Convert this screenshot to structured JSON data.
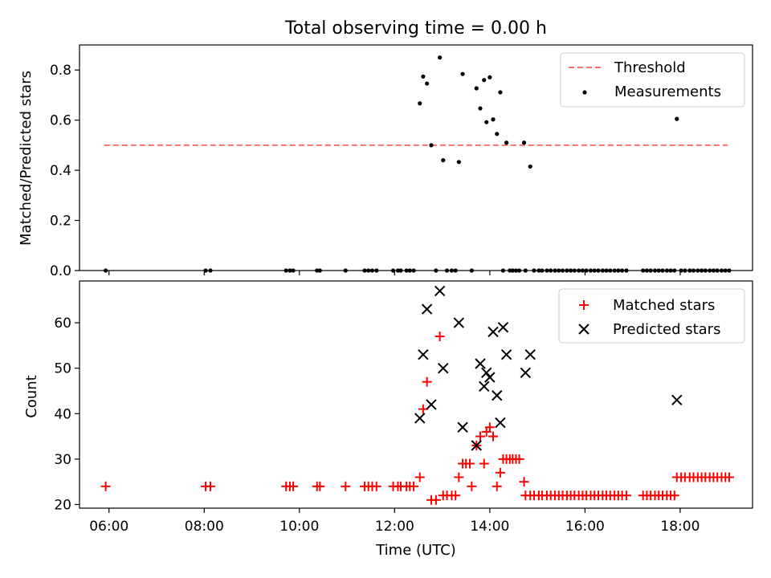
{
  "chart_data": [
    {
      "type": "scatter",
      "title": "Total observing time = 0.00 h",
      "xlabel": "",
      "ylabel": "Matched/Predicted stars",
      "xlim": [
        5.38,
        19.52
      ],
      "ylim": [
        0,
        0.9
      ],
      "yticks": [
        0.0,
        0.2,
        0.4,
        0.6,
        0.8
      ],
      "ytick_labels": [
        "0.0",
        "0.2",
        "0.4",
        "0.6",
        "0.8"
      ],
      "legend": {
        "position": "top-right",
        "entries": [
          "Threshold",
          "Measurements"
        ]
      },
      "threshold": {
        "name": "Threshold",
        "y": 0.5,
        "x_range": [
          5.9,
          19.0
        ],
        "color": "#ff6f6f"
      },
      "series": [
        {
          "name": "Measurements",
          "color": "#000000",
          "x": [
            5.93,
            8.03,
            8.13,
            9.72,
            9.8,
            9.87,
            10.37,
            10.43,
            10.97,
            11.37,
            11.45,
            11.53,
            11.62,
            11.97,
            12.07,
            12.13,
            12.25,
            12.32,
            12.4,
            12.53,
            12.6,
            12.68,
            12.77,
            12.87,
            12.95,
            13.02,
            13.1,
            13.2,
            13.28,
            13.35,
            13.43,
            13.62,
            13.72,
            13.8,
            13.88,
            13.93,
            14.0,
            14.07,
            14.15,
            14.22,
            14.28,
            14.35,
            14.42,
            14.48,
            14.55,
            14.62,
            14.72,
            14.75,
            14.85,
            14.93,
            15.03,
            15.1,
            15.2,
            15.28,
            15.37,
            15.45,
            15.53,
            15.62,
            15.7,
            15.78,
            15.87,
            15.95,
            16.03,
            16.12,
            16.2,
            16.28,
            16.37,
            16.45,
            16.53,
            16.62,
            16.7,
            16.78,
            16.87,
            17.22,
            17.3,
            17.38,
            17.47,
            17.55,
            17.63,
            17.72,
            17.8,
            17.88,
            17.93,
            18.02,
            18.1,
            18.2,
            18.28,
            18.37,
            18.45,
            18.53,
            18.62,
            18.7,
            18.78,
            18.87,
            18.95,
            19.03
          ],
          "y": [
            0,
            0,
            0,
            0,
            0,
            0,
            0,
            0,
            0,
            0,
            0,
            0,
            0,
            0,
            0,
            0,
            0,
            0,
            0,
            0.667,
            0.774,
            0.746,
            0.5,
            0,
            0.85,
            0.44,
            0,
            0,
            0,
            0.433,
            0.784,
            0,
            0.727,
            0.647,
            0.76,
            0.592,
            0.771,
            0.603,
            0.545,
            0.711,
            0,
            0.51,
            0,
            0,
            0,
            0,
            0.51,
            0,
            0.415,
            0,
            0,
            0,
            0,
            0,
            0,
            0,
            0,
            0,
            0,
            0,
            0,
            0,
            0,
            0,
            0,
            0,
            0,
            0,
            0,
            0,
            0,
            0,
            0,
            0,
            0,
            0,
            0,
            0,
            0,
            0,
            0,
            0,
            0.605,
            0,
            0,
            0,
            0,
            0,
            0,
            0,
            0,
            0,
            0,
            0,
            0,
            0
          ]
        }
      ]
    },
    {
      "type": "scatter",
      "title": "",
      "xlabel": "Time (UTC)",
      "ylabel": "Count",
      "xlim": [
        5.38,
        19.52
      ],
      "ylim": [
        19.2,
        69.2
      ],
      "yticks": [
        20,
        30,
        40,
        50,
        60
      ],
      "ytick_labels": [
        "20",
        "30",
        "40",
        "50",
        "60"
      ],
      "xticks": [
        6,
        8,
        10,
        12,
        14,
        16,
        18
      ],
      "xtick_labels": [
        "06:00",
        "08:00",
        "10:00",
        "12:00",
        "14:00",
        "16:00",
        "18:00"
      ],
      "legend": {
        "position": "top-right",
        "entries": [
          "Matched stars",
          "Predicted stars"
        ]
      },
      "series": [
        {
          "name": "Matched stars",
          "color": "#ff0000",
          "marker": "plus",
          "x": [
            5.93,
            8.03,
            8.13,
            9.72,
            9.8,
            9.87,
            10.37,
            10.43,
            10.97,
            11.37,
            11.45,
            11.53,
            11.62,
            11.97,
            12.07,
            12.13,
            12.25,
            12.32,
            12.4,
            12.53,
            12.6,
            12.68,
            12.77,
            12.87,
            12.95,
            13.02,
            13.1,
            13.2,
            13.28,
            13.35,
            13.43,
            13.5,
            13.58,
            13.62,
            13.72,
            13.8,
            13.88,
            13.93,
            14.0,
            14.07,
            14.15,
            14.22,
            14.28,
            14.35,
            14.42,
            14.48,
            14.55,
            14.62,
            14.72,
            14.75,
            14.85,
            14.93,
            15.03,
            15.1,
            15.2,
            15.28,
            15.37,
            15.45,
            15.53,
            15.62,
            15.7,
            15.78,
            15.87,
            15.95,
            16.03,
            16.12,
            16.2,
            16.28,
            16.37,
            16.45,
            16.53,
            16.62,
            16.7,
            16.78,
            16.87,
            17.22,
            17.3,
            17.38,
            17.47,
            17.55,
            17.63,
            17.72,
            17.8,
            17.88,
            17.93,
            18.02,
            18.1,
            18.2,
            18.28,
            18.37,
            18.45,
            18.53,
            18.62,
            18.7,
            18.78,
            18.87,
            18.95,
            19.03
          ],
          "y": [
            24,
            24,
            24,
            24,
            24,
            24,
            24,
            24,
            24,
            24,
            24,
            24,
            24,
            24,
            24,
            24,
            24,
            24,
            24,
            26,
            41,
            47,
            21,
            21,
            57,
            22,
            22,
            22,
            22,
            26,
            29,
            29,
            29,
            24,
            33,
            35,
            29,
            36,
            37,
            35,
            24,
            27,
            30,
            30,
            30,
            30,
            30,
            30,
            25,
            22,
            22,
            22,
            22,
            22,
            22,
            22,
            22,
            22,
            22,
            22,
            22,
            22,
            22,
            22,
            22,
            22,
            22,
            22,
            22,
            22,
            22,
            22,
            22,
            22,
            22,
            22,
            22,
            22,
            22,
            22,
            22,
            22,
            22,
            22,
            26,
            26,
            26,
            26,
            26,
            26,
            26,
            26,
            26,
            26,
            26,
            26,
            26,
            26
          ]
        },
        {
          "name": "Predicted stars",
          "color": "#000000",
          "marker": "x",
          "x": [
            12.53,
            12.6,
            12.68,
            12.77,
            12.95,
            13.02,
            13.35,
            13.43,
            13.72,
            13.8,
            13.88,
            13.93,
            14.0,
            14.07,
            14.15,
            14.22,
            14.28,
            14.35,
            14.75,
            14.85,
            17.93
          ],
          "y": [
            39,
            53,
            63,
            42,
            67,
            50,
            60,
            37,
            33,
            51,
            46,
            49,
            48,
            58,
            44,
            38,
            59,
            53,
            49,
            53,
            43
          ]
        }
      ]
    }
  ]
}
